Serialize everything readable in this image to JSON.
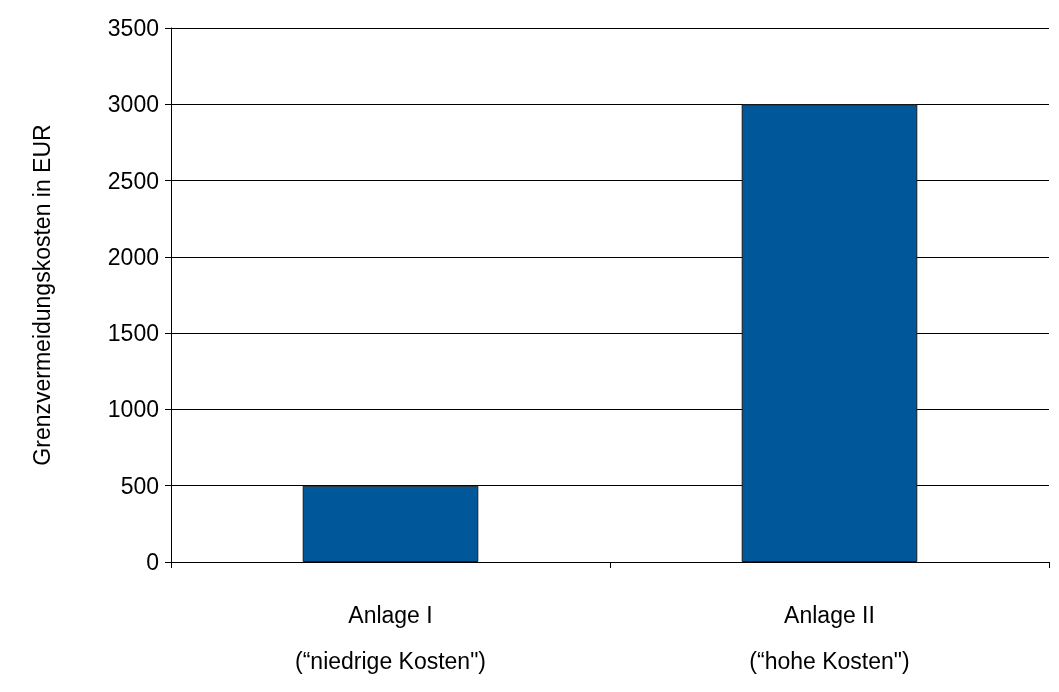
{
  "chart_data": {
    "type": "bar",
    "ylabel": "Grenzvermeidungskosten in EUR",
    "categories": [
      "Anlage I\n(“niedrige Kosten\")",
      "Anlage II\n(“hohe Kosten\")"
    ],
    "values": [
      500,
      3000
    ],
    "color": "#00589b",
    "ylim": [
      0,
      3500
    ],
    "yticks": [
      0,
      500,
      1000,
      1500,
      2000,
      2500,
      3000,
      3500
    ],
    "grid": "y"
  }
}
